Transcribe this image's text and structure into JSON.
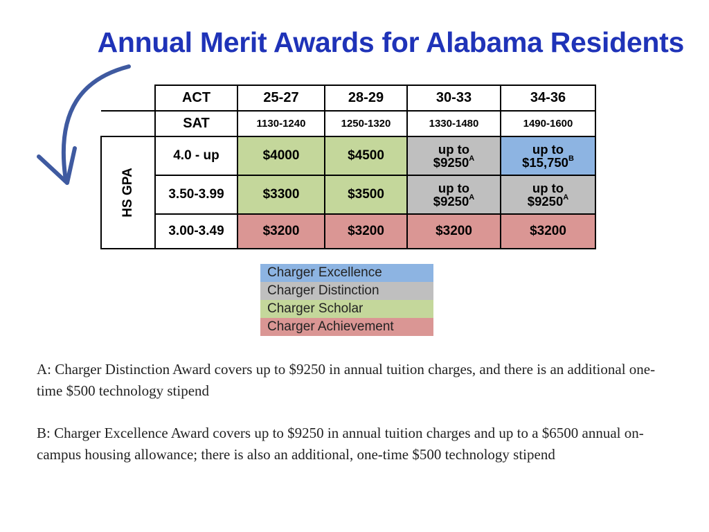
{
  "title": "Annual Merit Awards for Alabama Residents",
  "colors": {
    "title": "#1f33b8",
    "excellence": "#8db4e2",
    "distinction": "#bfbfbf",
    "scholar": "#c4d79b",
    "achievement": "#da9694"
  },
  "table": {
    "act_label": "ACT",
    "sat_label": "SAT",
    "gpa_label": "HS GPA",
    "act_ranges": [
      "25-27",
      "28-29",
      "30-33",
      "34-36"
    ],
    "sat_ranges": [
      "1130-1240",
      "1250-1320",
      "1330-1480",
      "1490-1600"
    ],
    "rows": [
      {
        "gpa": "4.0 - up",
        "cells": [
          {
            "line1": "$4000",
            "award": "scholar"
          },
          {
            "line1": "$4500",
            "award": "scholar"
          },
          {
            "line1": "up to",
            "line2": "$9250",
            "note": "A",
            "award": "distinction"
          },
          {
            "line1": "up to",
            "line2": "$15,750",
            "note": "B",
            "award": "excellence"
          }
        ]
      },
      {
        "gpa": "3.50-3.99",
        "cells": [
          {
            "line1": "$3300",
            "award": "scholar"
          },
          {
            "line1": "$3500",
            "award": "scholar"
          },
          {
            "line1": "up to",
            "line2": "$9250",
            "note": "A",
            "award": "distinction"
          },
          {
            "line1": "up to",
            "line2": "$9250",
            "note": "A",
            "award": "distinction"
          }
        ]
      },
      {
        "gpa": "3.00-3.49",
        "cells": [
          {
            "line1": "$3200",
            "award": "achievement"
          },
          {
            "line1": "$3200",
            "award": "achievement"
          },
          {
            "line1": "$3200",
            "award": "achievement"
          },
          {
            "line1": "$3200",
            "award": "achievement"
          }
        ]
      }
    ]
  },
  "legend": {
    "excellence": "Charger Excellence",
    "distinction": "Charger Distinction",
    "scholar": "Charger Scholar",
    "achievement": "Charger Achievement"
  },
  "notes": {
    "a": "A: Charger Distinction Award covers up to $9250 in annual tuition charges, and there is an additional one-time $500 technology stipend",
    "b": "B: Charger Excellence Award covers up to $9250 in annual tuition charges and up to a $6500 annual on-campus housing allowance; there is also an additional, one-time $500 technology stipend"
  }
}
